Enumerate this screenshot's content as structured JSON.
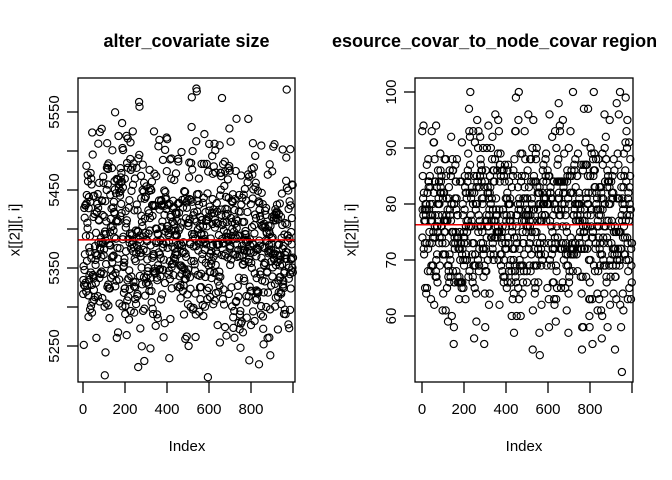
{
  "page": {
    "background": "#FFFFFF",
    "description": "R base graphics device with two scatter plots side by side"
  },
  "chart_data": [
    {
      "type": "scatter",
      "title": "alter_covariate size",
      "xlabel": "Index",
      "ylabel": "x[[2]][, i]",
      "marker": "open-circle",
      "point_color": "#000000",
      "n_points": 1000,
      "x_description": "index 1..1000",
      "xlim": [
        -24,
        1010
      ],
      "ylim": [
        5204,
        5594
      ],
      "x_ticks": {
        "values": [
          0,
          200,
          400,
          600,
          800,
          1000
        ],
        "labels": [
          "0",
          "200",
          "400",
          "600",
          "800",
          ""
        ]
      },
      "y_ticks": {
        "values": [
          5250,
          5300,
          5350,
          5400,
          5450,
          5500,
          5550
        ],
        "labels": [
          "5250",
          "",
          "5350",
          "",
          "5450",
          "",
          "5550"
        ]
      },
      "y_distribution": {
        "shape": "normal",
        "mean": 5386,
        "sd": 61,
        "min": 5210,
        "max": 5580,
        "quantized": false
      },
      "ref_line": {
        "value": 5386,
        "color": "#EE0000"
      },
      "notable_points": [],
      "grid": false,
      "legend": null,
      "seed": 11
    },
    {
      "type": "scatter",
      "title": "esource_covar_to_node_covar region",
      "title_note": "clipped at right edge of image",
      "xlabel": "Index",
      "ylabel": "x[[2]][, i]",
      "marker": "open-circle",
      "point_color": "#000000",
      "n_points": 1000,
      "x_description": "index 1..1000",
      "xlim": [
        -33,
        1005
      ],
      "ylim": [
        48,
        102.6
      ],
      "x_ticks": {
        "values": [
          0,
          200,
          400,
          600,
          800,
          1000
        ],
        "labels": [
          "0",
          "200",
          "400",
          "600",
          "800",
          ""
        ]
      },
      "y_ticks": {
        "values": [
          60,
          70,
          80,
          90,
          100
        ],
        "labels": [
          "60",
          "70",
          "80",
          "90",
          "100"
        ]
      },
      "y_distribution": {
        "shape": "normal",
        "mean": 76.3,
        "sd": 8.2,
        "min": 50,
        "max": 100,
        "quantized": true
      },
      "ref_line": {
        "value": 76.3,
        "color": "#EE0000"
      },
      "notable_points": [
        {
          "x": 943,
          "y": 100
        },
        {
          "x": 952,
          "y": 50
        }
      ],
      "grid": false,
      "legend": null,
      "seed": 23
    }
  ]
}
